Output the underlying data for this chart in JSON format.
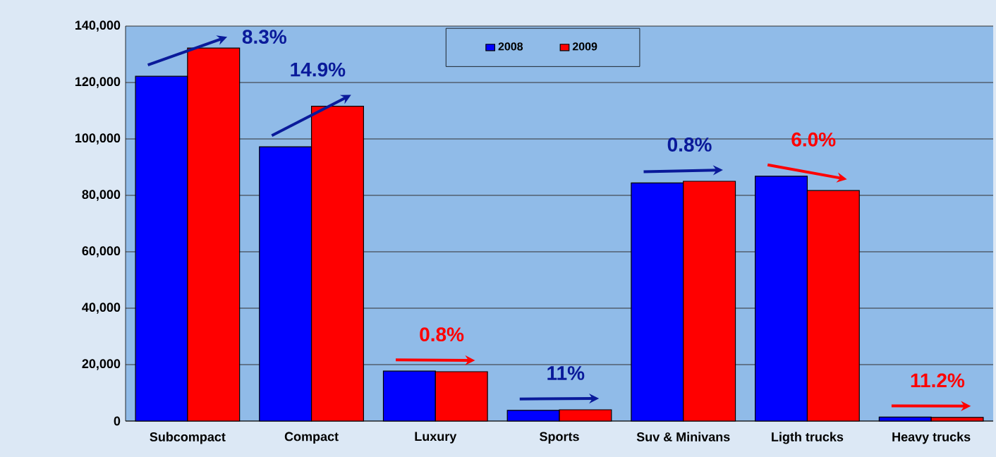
{
  "chart_data": {
    "type": "bar",
    "categories": [
      "Subcompact",
      "Compact",
      "Luxury",
      "Sports",
      "Suv & Minivans",
      "Ligth trucks",
      "Heavy trucks"
    ],
    "series": [
      {
        "name": "2008",
        "color": "#0000ff",
        "values": [
          122200,
          97200,
          17700,
          3800,
          84400,
          86800,
          1400
        ]
      },
      {
        "name": "2009",
        "color": "#ff0000",
        "values": [
          132200,
          111600,
          17500,
          4000,
          85000,
          81700,
          1300
        ]
      }
    ],
    "ylim": [
      0,
      140000
    ],
    "yticks": [
      {
        "value": 0,
        "label": "0"
      },
      {
        "value": 20000,
        "label": "20,000"
      },
      {
        "value": 40000,
        "label": "40,000"
      },
      {
        "value": 60000,
        "label": "60,000"
      },
      {
        "value": 80000,
        "label": "80,000"
      },
      {
        "value": 100000,
        "label": "100,000"
      },
      {
        "value": 120000,
        "label": "120,000"
      },
      {
        "value": 140000,
        "label": "140,000"
      }
    ],
    "grid": "y",
    "legend": "top",
    "annotations": [
      "8.3%",
      "14.9%",
      "0.8%",
      "11%",
      "0.8%",
      "6.0%",
      "11.2%"
    ]
  }
}
